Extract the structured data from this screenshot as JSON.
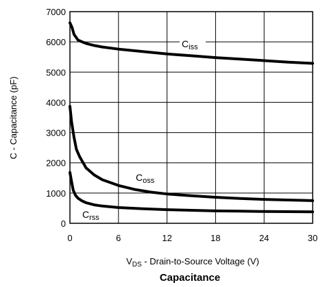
{
  "chart_data": {
    "type": "line",
    "title": "Capacitance",
    "xlabel": {
      "prefix": "V",
      "sub": "DS",
      "rest": " - Drain-to-Source Voltage (V)"
    },
    "ylabel": "C - Capacitance (pF)",
    "xlim": [
      0,
      30
    ],
    "ylim": [
      0,
      7000
    ],
    "xticks": [
      0,
      6,
      12,
      18,
      24,
      30
    ],
    "yticks": [
      0,
      1000,
      2000,
      3000,
      4000,
      5000,
      6000,
      7000
    ],
    "grid": true,
    "series": [
      {
        "name": "C_iss",
        "label_main": "C",
        "label_sub": "iss",
        "x": [
          0,
          0.25,
          0.5,
          1,
          1.5,
          2,
          3,
          4,
          6,
          9,
          12,
          15,
          18,
          21,
          24,
          27,
          30
        ],
        "y": [
          6630,
          6480,
          6250,
          6060,
          6000,
          5950,
          5880,
          5830,
          5760,
          5680,
          5600,
          5540,
          5480,
          5430,
          5380,
          5330,
          5290
        ]
      },
      {
        "name": "C_oss",
        "label_main": "C",
        "label_sub": "oss",
        "x": [
          0,
          0.2,
          0.5,
          0.8,
          1.2,
          2,
          3,
          4,
          6,
          8,
          10,
          12,
          15,
          18,
          21,
          24,
          27,
          30
        ],
        "y": [
          3870,
          3350,
          2850,
          2450,
          2200,
          1830,
          1600,
          1440,
          1250,
          1120,
          1030,
          970,
          910,
          860,
          820,
          790,
          770,
          750
        ]
      },
      {
        "name": "C_rss",
        "label_main": "C",
        "label_sub": "rss",
        "x": [
          0,
          0.15,
          0.4,
          0.7,
          1,
          1.5,
          2,
          3,
          4,
          6,
          9,
          12,
          15,
          18,
          21,
          24,
          27,
          30
        ],
        "y": [
          1680,
          1450,
          1100,
          920,
          830,
          740,
          680,
          610,
          570,
          520,
          480,
          450,
          430,
          410,
          400,
          390,
          385,
          380
        ]
      }
    ]
  }
}
